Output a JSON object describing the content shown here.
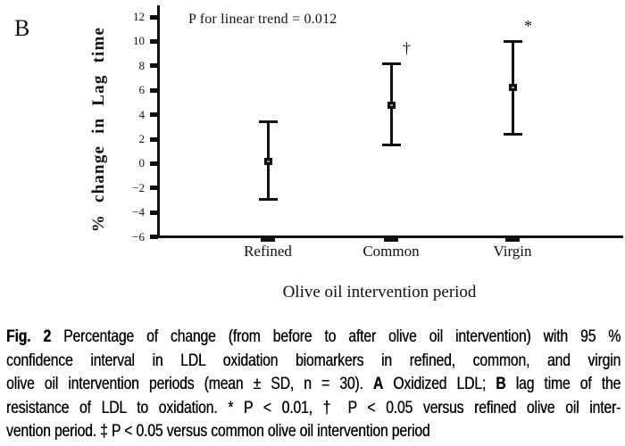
{
  "panel_label": "B",
  "colors": {
    "ink": "#111111",
    "background": "#ffffff"
  },
  "chart_data": {
    "type": "scatter",
    "error_bars": true,
    "title": "",
    "annotation": "P for linear trend = 0.012",
    "xlabel": "Olive oil intervention period",
    "ylabel": "% change in Lag time",
    "ylim": [
      -6,
      12
    ],
    "ytick_step": 2,
    "yticks": [
      "12",
      "10",
      "8",
      "6",
      "4",
      "2",
      "0",
      "−2",
      "−4",
      "−6"
    ],
    "categories": [
      "Refined",
      "Common",
      "Virgin"
    ],
    "series": [
      {
        "name": "% change in Lag time (mean with 95 % CI)",
        "points": [
          {
            "category": "Refined",
            "mean": 0.2,
            "lower": -2.9,
            "upper": 3.4,
            "sig_marker": ""
          },
          {
            "category": "Common",
            "mean": 4.8,
            "lower": 1.5,
            "upper": 8.2,
            "sig_marker": "†"
          },
          {
            "category": "Virgin",
            "mean": 6.2,
            "lower": 2.4,
            "upper": 10.0,
            "sig_marker": "*"
          }
        ]
      }
    ],
    "grid": false,
    "legend": false
  },
  "caption": {
    "lines": [
      {
        "justify": true,
        "segments": [
          {
            "text": "Fig. 2",
            "bold": true
          },
          {
            "text": "  Percentage of change (from before to after olive oil intervention) with 95 %",
            "bold": false
          }
        ]
      },
      {
        "justify": true,
        "segments": [
          {
            "text": "confidence interval in LDL oxidation biomarkers in refined, common, and virgin",
            "bold": false
          }
        ]
      },
      {
        "justify": true,
        "segments": [
          {
            "text": "olive oil intervention periods (mean ± SD, n = 30). ",
            "bold": false
          },
          {
            "text": "A",
            "bold": true
          },
          {
            "text": " Oxidized LDL; ",
            "bold": false
          },
          {
            "text": "B",
            "bold": true
          },
          {
            "text": " lag time of the",
            "bold": false
          }
        ]
      },
      {
        "justify": true,
        "segments": [
          {
            "text": "resistance of LDL to oxidation. * P < 0.01, † P < 0.05 versus refined olive oil inter-",
            "bold": false
          }
        ]
      },
      {
        "justify": false,
        "segments": [
          {
            "text": "vention period. ‡ P < 0.05 versus common olive oil intervention period",
            "bold": false
          }
        ]
      }
    ]
  }
}
